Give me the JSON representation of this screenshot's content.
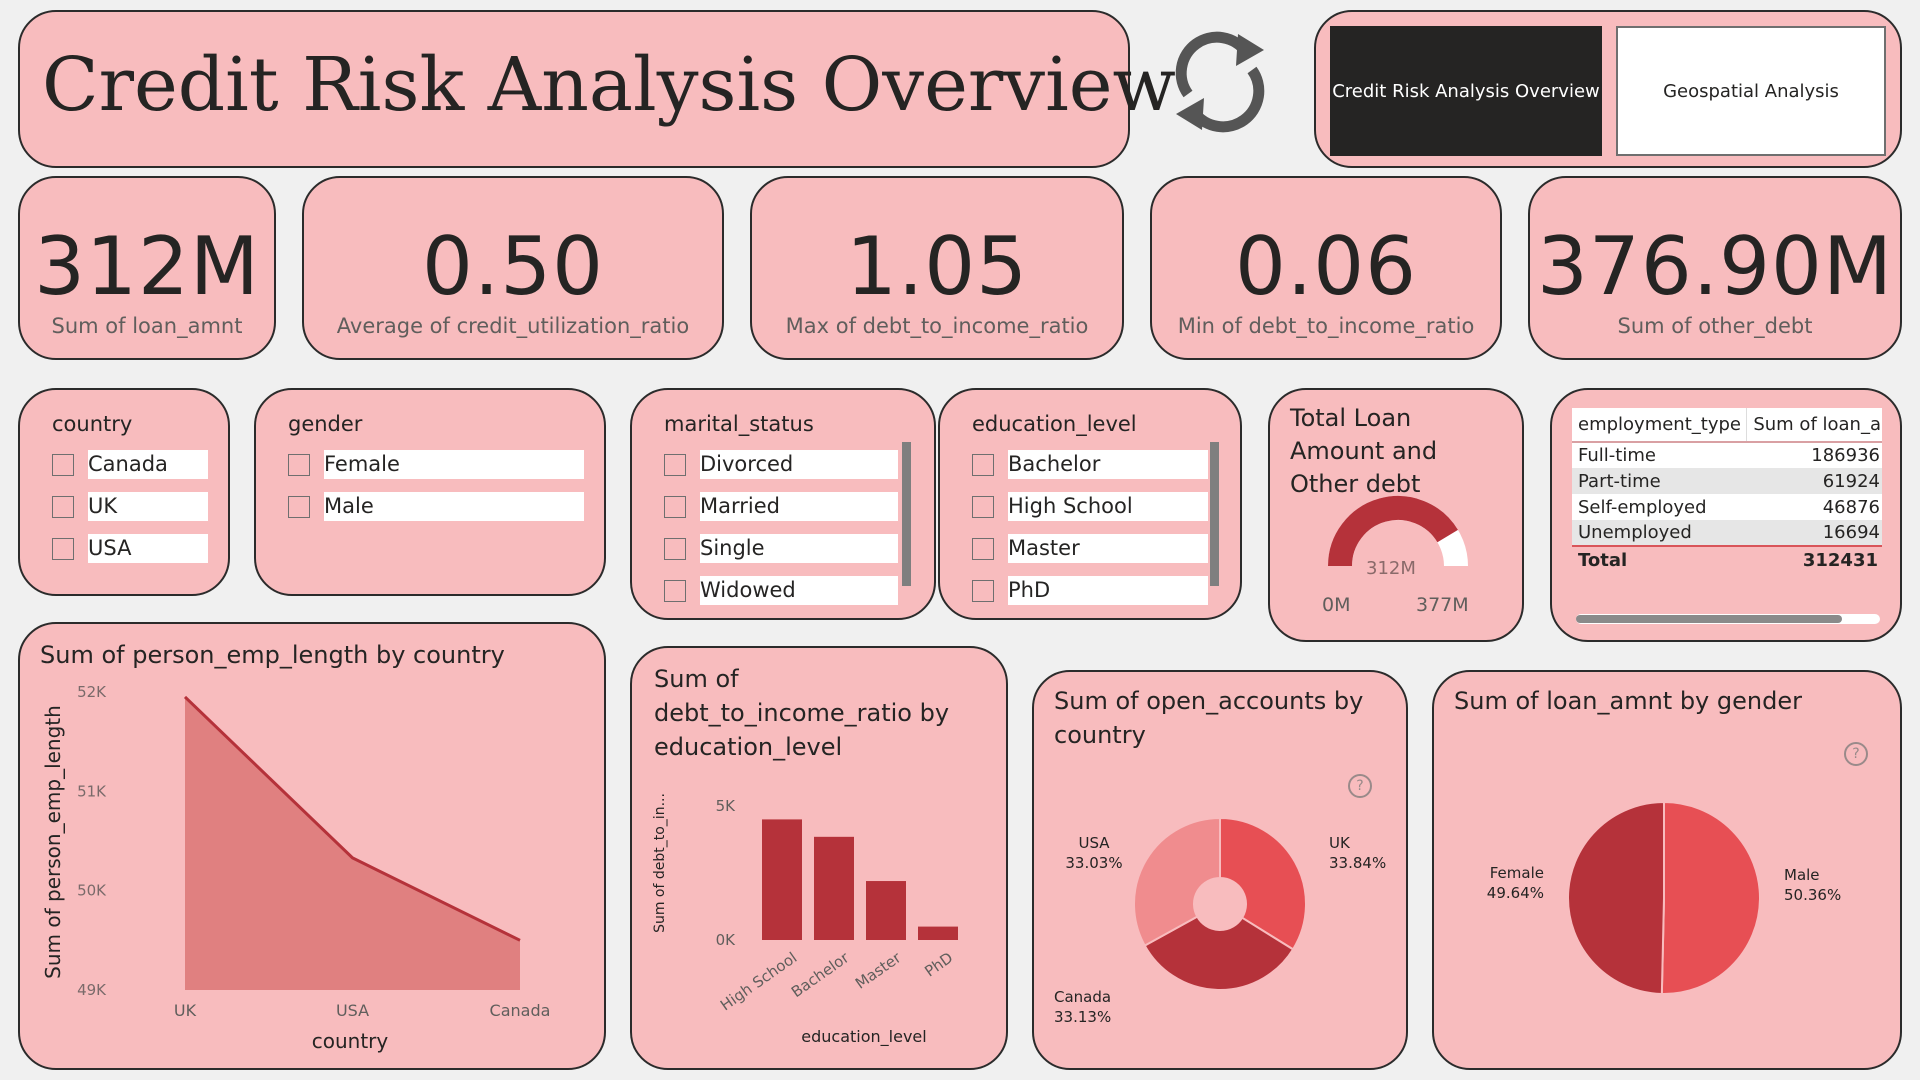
{
  "header": {
    "title": "Credit Risk Analysis Overview",
    "nav": [
      {
        "label": "Credit Risk Analysis Overview",
        "active": true
      },
      {
        "label": "Geospatial Analysis",
        "active": false
      }
    ],
    "refresh_icon": "refresh-icon"
  },
  "kpis": [
    {
      "value": "312M",
      "label": "Sum of loan_amnt"
    },
    {
      "value": "0.50",
      "label": "Average of credit_utilization_ratio"
    },
    {
      "value": "1.05",
      "label": "Max of debt_to_income_ratio"
    },
    {
      "value": "0.06",
      "label": "Min of debt_to_income_ratio"
    },
    {
      "value": "376.90M",
      "label": "Sum of other_debt"
    }
  ],
  "slicers": {
    "country": {
      "title": "country",
      "items": [
        "Canada",
        "UK",
        "USA"
      ]
    },
    "gender": {
      "title": "gender",
      "items": [
        "Female",
        "Male"
      ]
    },
    "marital_status": {
      "title": "marital_status",
      "items": [
        "Divorced",
        "Married",
        "Single",
        "Widowed"
      ]
    },
    "education_level": {
      "title": "education_level",
      "items": [
        "Bachelor",
        "High School",
        "Master",
        "PhD"
      ]
    }
  },
  "gauge": {
    "title_lines": [
      "Total Loan",
      "Amount and",
      "Other debt"
    ],
    "value_label": "312M",
    "min_label": "0M",
    "max_label": "377M",
    "value": 312,
    "min": 0,
    "max": 377
  },
  "employment_table": {
    "headers": [
      "employment_type",
      "Sum of loan_a"
    ],
    "rows": [
      [
        "Full-time",
        "186936"
      ],
      [
        "Part-time",
        "61924"
      ],
      [
        "Self-employed",
        "46876"
      ],
      [
        "Unemployed",
        "16694"
      ]
    ],
    "total": [
      "Total",
      "312431"
    ]
  },
  "colors": {
    "card_bg": "#f8bcbe",
    "dark_red": "#b5323a",
    "mid_red": "#e74f54",
    "light_red": "#f08c8e",
    "area_fill": "#e08080"
  },
  "help_icon": "help-icon",
  "chart_data": [
    {
      "type": "area",
      "title": "Sum of person_emp_length by country",
      "xlabel": "country",
      "ylabel": "Sum of person_emp_length",
      "categories": [
        "UK",
        "USA",
        "Canada"
      ],
      "values": [
        51950,
        50330,
        49500
      ],
      "ylim": [
        49000,
        52000
      ],
      "yticks": [
        "49K",
        "50K",
        "51K",
        "52K"
      ]
    },
    {
      "type": "bar",
      "title": "Sum of debt_to_income_ratio by education_level",
      "xlabel": "education_level",
      "ylabel": "Sum of debt_to_in...",
      "categories": [
        "High School",
        "Bachelor",
        "Master",
        "PhD"
      ],
      "values": [
        4500,
        3850,
        2200,
        500
      ],
      "ylim": [
        0,
        5000
      ],
      "yticks": [
        "0K",
        "5K"
      ]
    },
    {
      "type": "pie",
      "title": "Sum of open_accounts by country",
      "donut": true,
      "slices": [
        {
          "label": "UK",
          "pct": "33.84%",
          "value": 33.84
        },
        {
          "label": "Canada",
          "pct": "33.13%",
          "value": 33.13
        },
        {
          "label": "USA",
          "pct": "33.03%",
          "value": 33.03
        }
      ]
    },
    {
      "type": "pie",
      "title": "Sum of loan_amnt by gender",
      "donut": false,
      "slices": [
        {
          "label": "Male",
          "pct": "50.36%",
          "value": 50.36
        },
        {
          "label": "Female",
          "pct": "49.64%",
          "value": 49.64
        }
      ]
    }
  ]
}
